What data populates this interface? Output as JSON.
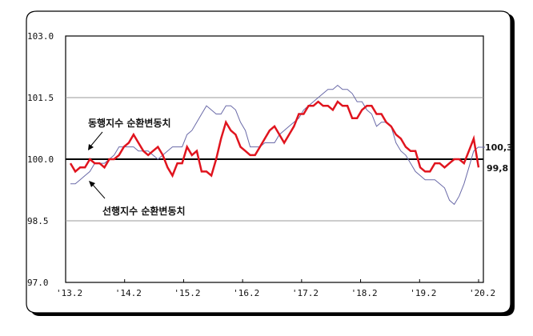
{
  "chart_data": {
    "type": "line",
    "title": "",
    "xlabel": "",
    "ylabel": "",
    "ylim": [
      97.0,
      103.0
    ],
    "yticks": [
      "103.0",
      "101.5",
      "100.0",
      "98.5",
      "97.0"
    ],
    "ytick_values": [
      103.0,
      101.5,
      100.0,
      98.5,
      97.0
    ],
    "xticks": [
      "'13.2",
      "'14.2",
      "'15.2",
      "'16.2",
      "'17.2",
      "'18.2",
      "'19.2",
      "'20.2"
    ],
    "grid": "horizontal at 101.5 and 98.5; bold reference line at 100.0",
    "legend_position": "inline annotations with arrows",
    "x_start": "2013.02",
    "x_end": "2020.02",
    "frequency": "monthly",
    "series": [
      {
        "name": "동행지수 순환변동치",
        "color": "#e0141e",
        "line_width": 2.5,
        "end_value": 99.8,
        "values": [
          99.9,
          99.7,
          99.8,
          99.8,
          100.0,
          99.9,
          99.9,
          99.8,
          100.0,
          100.0,
          100.1,
          100.3,
          100.4,
          100.6,
          100.4,
          100.2,
          100.1,
          100.2,
          100.3,
          100.1,
          99.8,
          99.6,
          99.9,
          99.9,
          100.3,
          100.1,
          100.2,
          99.7,
          99.7,
          99.6,
          100.0,
          100.5,
          100.9,
          100.7,
          100.6,
          100.3,
          100.2,
          100.1,
          100.1,
          100.3,
          100.5,
          100.7,
          100.8,
          100.6,
          100.4,
          100.6,
          100.8,
          101.1,
          101.1,
          101.3,
          101.3,
          101.4,
          101.3,
          101.3,
          101.2,
          101.4,
          101.3,
          101.3,
          101.0,
          101.0,
          101.2,
          101.3,
          101.3,
          101.1,
          101.1,
          100.9,
          100.8,
          100.6,
          100.5,
          100.3,
          100.2,
          100.2,
          99.8,
          99.7,
          99.7,
          99.9,
          99.9,
          99.8,
          99.9,
          100.0,
          100.0,
          99.9,
          100.2,
          100.5,
          99.8
        ]
      },
      {
        "name": "선행지수 순환변동치",
        "color": "#6a6aa8",
        "line_width": 1,
        "end_value": 100.3,
        "values": [
          99.4,
          99.4,
          99.5,
          99.6,
          99.7,
          99.9,
          99.9,
          99.9,
          100.0,
          100.1,
          100.3,
          100.3,
          100.3,
          100.3,
          100.2,
          100.2,
          100.2,
          100.1,
          100.0,
          100.1,
          100.2,
          100.3,
          100.3,
          100.3,
          100.6,
          100.7,
          100.9,
          101.1,
          101.3,
          101.2,
          101.1,
          101.1,
          101.3,
          101.3,
          101.2,
          100.9,
          100.7,
          100.3,
          100.3,
          100.3,
          100.4,
          100.4,
          100.4,
          100.6,
          100.7,
          100.8,
          100.9,
          101.0,
          101.2,
          101.3,
          101.4,
          101.5,
          101.6,
          101.7,
          101.7,
          101.8,
          101.7,
          101.7,
          101.6,
          101.4,
          101.4,
          101.2,
          101.1,
          100.8,
          100.9,
          100.9,
          100.8,
          100.4,
          100.2,
          100.1,
          99.9,
          99.7,
          99.6,
          99.5,
          99.5,
          99.5,
          99.4,
          99.3,
          99.0,
          98.9,
          99.1,
          99.4,
          99.8,
          100.2,
          100.3
        ]
      }
    ],
    "annotations": [
      {
        "text": "동행지수 순환변동치",
        "points_to": "동행지수 순환변동치"
      },
      {
        "text": "선행지수 순환변동치",
        "points_to": "선행지수 순환변동치"
      },
      {
        "text": "100,3",
        "position": "right end"
      },
      {
        "text": "99,8",
        "position": "right end"
      }
    ]
  },
  "labels": {
    "coincident": "동행지수 순환변동치",
    "leading": "선행지수 순환변동치",
    "end_leading": "100,3",
    "end_coincident": "99,8"
  }
}
